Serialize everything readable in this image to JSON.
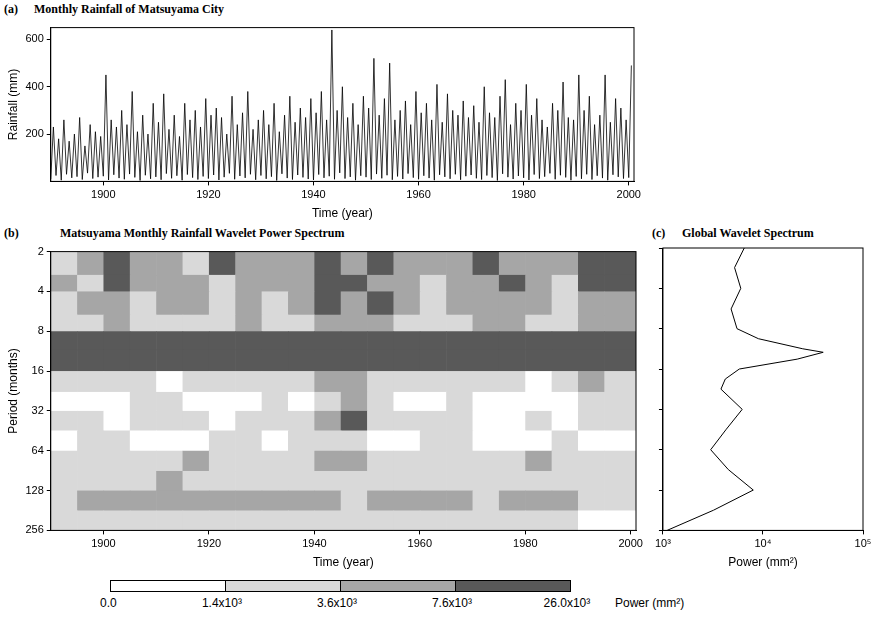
{
  "chart_data": [
    {
      "panel_label": "(a)",
      "type": "line",
      "title": "Monthly Rainfall of Matsuyama City",
      "x_label": "Time (year)",
      "y_label": "Rainfall (mm)",
      "color": "#000000",
      "grid": false,
      "xlim": [
        1890,
        2001
      ],
      "xticks": [
        1900,
        1920,
        1940,
        1960,
        1980,
        2000
      ],
      "ylim": [
        0,
        650
      ],
      "yticks": [
        200,
        400,
        600
      ],
      "x": [
        1890,
        1890.5,
        1891,
        1891.5,
        1892,
        1892.5,
        1893,
        1893.5,
        1894,
        1894.5,
        1895,
        1895.5,
        1896,
        1896.5,
        1897,
        1897.5,
        1898,
        1898.5,
        1899,
        1899.5,
        1900,
        1900.5,
        1901,
        1901.5,
        1902,
        1902.5,
        1903,
        1903.5,
        1904,
        1904.5,
        1905,
        1905.5,
        1906,
        1906.5,
        1907,
        1907.5,
        1908,
        1908.5,
        1909,
        1909.5,
        1910,
        1910.5,
        1911,
        1911.5,
        1912,
        1912.5,
        1913,
        1913.5,
        1914,
        1914.5,
        1915,
        1915.5,
        1916,
        1916.5,
        1917,
        1917.5,
        1918,
        1918.5,
        1919,
        1919.5,
        1920,
        1920.5,
        1921,
        1921.5,
        1922,
        1922.5,
        1923,
        1923.5,
        1924,
        1924.5,
        1925,
        1925.5,
        1926,
        1926.5,
        1927,
        1927.5,
        1928,
        1928.5,
        1929,
        1929.5,
        1930,
        1930.5,
        1931,
        1931.5,
        1932,
        1932.5,
        1933,
        1933.5,
        1934,
        1934.5,
        1935,
        1935.5,
        1936,
        1936.5,
        1937,
        1937.5,
        1938,
        1938.5,
        1939,
        1939.5,
        1940,
        1940.5,
        1941,
        1941.5,
        1942,
        1942.5,
        1943,
        1943.5,
        1944,
        1944.5,
        1945,
        1945.5,
        1946,
        1946.5,
        1947,
        1947.5,
        1948,
        1948.5,
        1949,
        1949.5,
        1950,
        1950.5,
        1951,
        1951.5,
        1952,
        1952.5,
        1953,
        1953.5,
        1954,
        1954.5,
        1955,
        1955.5,
        1956,
        1956.5,
        1957,
        1957.5,
        1958,
        1958.5,
        1959,
        1959.5,
        1960,
        1960.5,
        1961,
        1961.5,
        1962,
        1962.5,
        1963,
        1963.5,
        1964,
        1964.5,
        1965,
        1965.5,
        1966,
        1966.5,
        1967,
        1967.5,
        1968,
        1968.5,
        1969,
        1969.5,
        1970,
        1970.5,
        1971,
        1971.5,
        1972,
        1972.5,
        1973,
        1973.5,
        1974,
        1974.5,
        1975,
        1975.5,
        1976,
        1976.5,
        1977,
        1977.5,
        1978,
        1978.5,
        1979,
        1979.5,
        1980,
        1980.5,
        1981,
        1981.5,
        1982,
        1982.5,
        1983,
        1983.5,
        1984,
        1984.5,
        1985,
        1985.5,
        1986,
        1986.5,
        1987,
        1987.5,
        1988,
        1988.5,
        1989,
        1989.5,
        1990,
        1990.5,
        1991,
        1991.5,
        1992,
        1992.5,
        1993,
        1993.5,
        1994,
        1994.5,
        1995,
        1995.5,
        1996,
        1996.5,
        1997,
        1997.5,
        1998,
        1998.5,
        1999,
        1999.5,
        2000,
        2000.5
      ],
      "values": [
        10,
        230,
        25,
        180,
        5,
        260,
        30,
        170,
        15,
        200,
        20,
        270,
        8,
        150,
        35,
        240,
        12,
        210,
        18,
        190,
        22,
        450,
        6,
        260,
        28,
        230,
        14,
        300,
        9,
        240,
        31,
        380,
        17,
        210,
        4,
        280,
        26,
        200,
        11,
        330,
        19,
        250,
        7,
        370,
        33,
        220,
        13,
        280,
        24,
        190,
        5,
        330,
        29,
        260,
        16,
        300,
        8,
        230,
        21,
        350,
        12,
        280,
        27,
        310,
        6,
        270,
        18,
        200,
        34,
        360,
        9,
        240,
        23,
        290,
        15,
        380,
        30,
        220,
        7,
        260,
        25,
        300,
        11,
        240,
        20,
        330,
        4,
        210,
        32,
        280,
        14,
        360,
        8,
        250,
        27,
        310,
        17,
        270,
        10,
        350,
        6,
        290,
        29,
        380,
        15,
        260,
        22,
        640,
        9,
        300,
        36,
        400,
        12,
        270,
        19,
        330,
        5,
        240,
        24,
        360,
        18,
        310,
        8,
        520,
        31,
        280,
        13,
        350,
        26,
        500,
        7,
        260,
        21,
        300,
        10,
        340,
        33,
        240,
        16,
        380,
        9,
        290,
        24,
        330,
        14,
        260,
        5,
        410,
        28,
        250,
        19,
        370,
        11,
        300,
        30,
        280,
        7,
        340,
        22,
        270,
        27,
        320,
        13,
        250,
        8,
        400,
        25,
        290,
        16,
        270,
        4,
        360,
        32,
        430,
        18,
        240,
        10,
        330,
        23,
        300,
        15,
        410,
        6,
        280,
        29,
        350,
        12,
        260,
        20,
        230,
        34,
        330,
        9,
        300,
        26,
        420,
        17,
        270,
        5,
        260,
        21,
        450,
        11,
        300,
        30,
        360,
        8,
        240,
        24,
        280,
        14,
        450,
        5,
        250,
        28,
        350,
        19,
        310,
        12,
        260,
        16,
        490
      ]
    },
    {
      "panel_label": "(b)",
      "type": "heatmap",
      "title": "Matsuyama Monthly Rainfall Wavelet Power Spectrum",
      "x_label": "Time (year)",
      "y_label": "Period (months)",
      "grid": false,
      "log": "y",
      "xlim": [
        1890,
        2001
      ],
      "xticks": [
        1900,
        1920,
        1940,
        1960,
        1980,
        2000
      ],
      "ylim": [
        2,
        256
      ],
      "yticks": [
        2,
        4,
        8,
        16,
        32,
        64,
        128,
        256
      ],
      "x_edges": [
        1890,
        1895,
        1900,
        1905,
        1910,
        1915,
        1920,
        1925,
        1930,
        1935,
        1940,
        1945,
        1950,
        1955,
        1960,
        1965,
        1970,
        1975,
        1980,
        1985,
        1990,
        1995,
        2001
      ],
      "y_edges": [
        2,
        3,
        4,
        6,
        8,
        11,
        16,
        23,
        32,
        45,
        64,
        91,
        128,
        181,
        256
      ],
      "cells": [
        [
          3000,
          5000,
          9000,
          4000,
          6000,
          3000,
          8000,
          5000,
          4000,
          7000,
          9000,
          6000,
          10000,
          5000,
          4000,
          6000,
          8000,
          7000,
          5000,
          4000,
          9000,
          8000
        ],
        [
          4000,
          3000,
          8000,
          5000,
          4000,
          6000,
          3000,
          7000,
          5000,
          4000,
          8000,
          9000,
          6000,
          7000,
          3000,
          5000,
          4000,
          9000,
          6000,
          3000,
          8000,
          10000
        ],
        [
          3000,
          4000,
          5000,
          3000,
          5000,
          4000,
          3000,
          6000,
          3000,
          4000,
          9000,
          5000,
          8000,
          4000,
          3000,
          4000,
          6000,
          5000,
          4000,
          3000,
          7000,
          6000
        ],
        [
          2500,
          3000,
          4000,
          3000,
          3000,
          2000,
          3000,
          4000,
          2500,
          3000,
          5000,
          4000,
          6000,
          3000,
          2000,
          3000,
          5000,
          4000,
          3000,
          2500,
          5000,
          4000
        ],
        [
          9000,
          12000,
          15000,
          10000,
          8000,
          11000,
          9000,
          14000,
          8000,
          16000,
          12000,
          18000,
          13000,
          9000,
          15000,
          12000,
          10000,
          14000,
          9000,
          11000,
          16000,
          13000
        ],
        [
          28000,
          30000,
          32000,
          27000,
          28000,
          30000,
          31000,
          29000,
          30000,
          33000,
          28000,
          34000,
          30000,
          29000,
          32000,
          31000,
          28000,
          33000,
          30000,
          29000,
          34000,
          31000
        ],
        [
          2000,
          3000,
          1500,
          2500,
          1200,
          2000,
          3000,
          1500,
          2500,
          3000,
          5000,
          4000,
          2000,
          1500,
          3000,
          2000,
          2500,
          1500,
          1200,
          2000,
          5000,
          3000
        ],
        [
          1200,
          1000,
          800,
          1500,
          2000,
          1000,
          900,
          1200,
          1800,
          1000,
          3000,
          4500,
          1500,
          1000,
          1200,
          1600,
          1000,
          900,
          1300,
          1000,
          2000,
          1500
        ],
        [
          1500,
          2000,
          1000,
          2500,
          3000,
          1500,
          1200,
          2000,
          2500,
          1500,
          4000,
          9000,
          3000,
          2000,
          1500,
          1800,
          1200,
          1000,
          1500,
          1200,
          1600,
          2000
        ],
        [
          1000,
          1500,
          2000,
          1200,
          900,
          1000,
          1600,
          2000,
          1000,
          1500,
          2500,
          3000,
          1200,
          1000,
          2000,
          1500,
          1000,
          1200,
          800,
          1500,
          1000,
          1200
        ],
        [
          2000,
          3000,
          2500,
          1500,
          2000,
          4000,
          3000,
          2000,
          1500,
          3000,
          5000,
          4500,
          2000,
          2500,
          1500,
          2000,
          3000,
          2500,
          4000,
          3000,
          2000,
          1500
        ],
        [
          2500,
          3000,
          2000,
          3000,
          4000,
          3500,
          2500,
          3000,
          2000,
          2500,
          3000,
          3500,
          2500,
          2000,
          3000,
          2500,
          2000,
          3000,
          2500,
          2000,
          2500,
          3000
        ],
        [
          3000,
          4000,
          5000,
          6000,
          5000,
          4000,
          5000,
          6000,
          4000,
          5000,
          4000,
          3000,
          4000,
          5000,
          6000,
          4000,
          3000,
          4000,
          5000,
          4000,
          3000,
          3000
        ],
        [
          1500,
          2000,
          2500,
          2000,
          1500,
          2000,
          2500,
          3000,
          2000,
          1500,
          2000,
          2500,
          2000,
          1500,
          2000,
          2500,
          2000,
          1500,
          2000,
          1500,
          1200,
          1000
        ]
      ],
      "colorbar": {
        "label": "Power (mm²)",
        "range": [
          0,
          26000
        ],
        "ticks": [
          {
            "value": 0,
            "label": "0.0"
          },
          {
            "value": 1400,
            "label": "1.4x10³"
          },
          {
            "value": 3600,
            "label": "3.6x10³"
          },
          {
            "value": 7600,
            "label": "7.6x10³"
          },
          {
            "value": 26000,
            "label": "26.0x10³"
          }
        ],
        "colors": [
          "#ffffff",
          "#d9d9d9",
          "#a6a6a6",
          "#595959"
        ]
      }
    },
    {
      "panel_label": "(c)",
      "type": "line",
      "title": "Global Wavelet Spectrum",
      "x_label": "Power (mm²)",
      "color": "#000000",
      "grid": false,
      "log": true,
      "tick_labels": "x",
      "xlim": [
        1000,
        100000
      ],
      "xticks": [
        {
          "value": 1000,
          "label": "10³"
        },
        {
          "value": 10000,
          "label": "10⁴"
        },
        {
          "value": 100000,
          "label": "10⁵"
        }
      ],
      "ylim": [
        2,
        256
      ],
      "yticks": [
        2,
        4,
        8,
        16,
        32,
        64,
        128,
        256
      ],
      "x": [
        6500,
        5200,
        6000,
        4800,
        5500,
        9000,
        25000,
        40000,
        22000,
        5800,
        4200,
        3800,
        6200,
        4300,
        3000,
        4500,
        8000,
        3200,
        1100
      ],
      "y": [
        2,
        2.8,
        4,
        5.7,
        8,
        9.5,
        11.3,
        12,
        13.5,
        16,
        19,
        22.6,
        32,
        45,
        64,
        90,
        128,
        181,
        256
      ]
    }
  ]
}
